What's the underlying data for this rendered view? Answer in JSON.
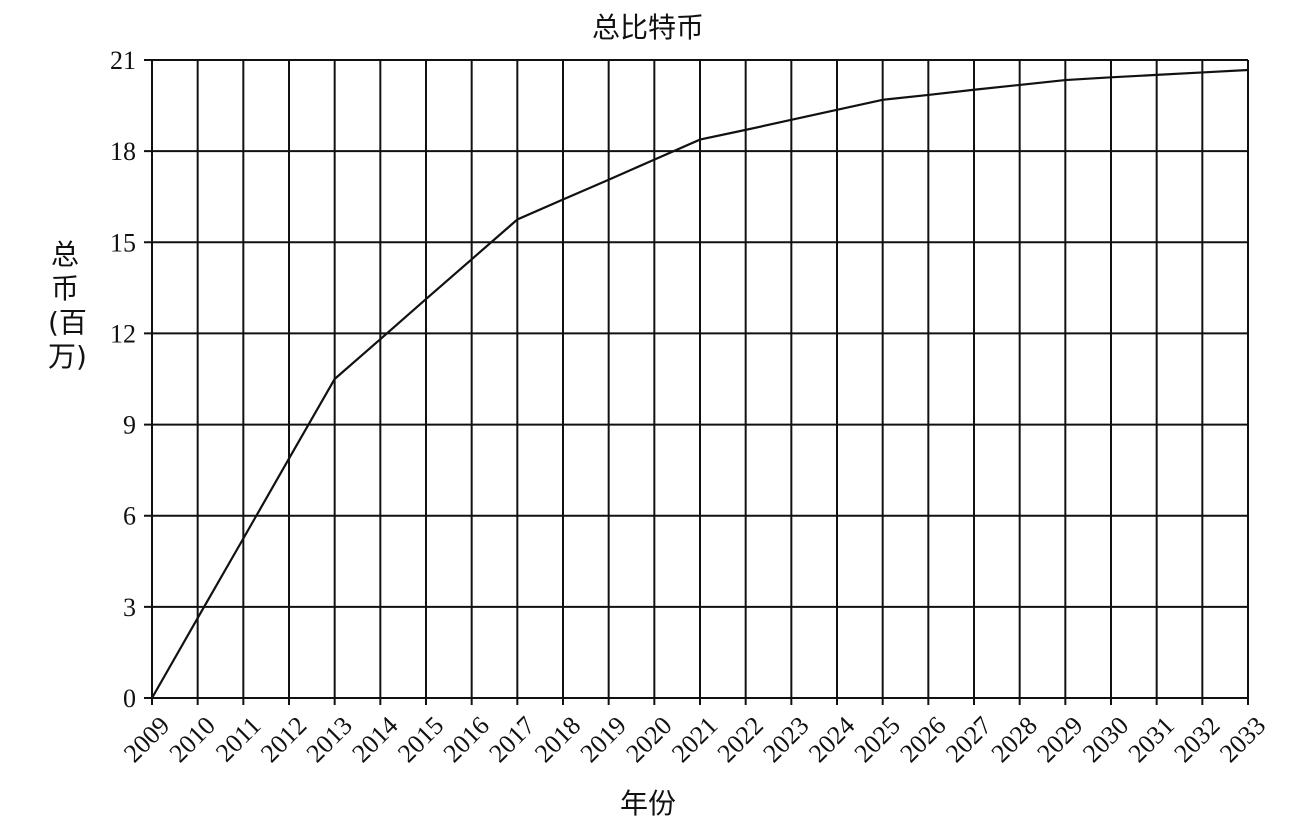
{
  "chart_data": {
    "type": "line",
    "title": "总比特币",
    "xlabel": "年份",
    "ylabel": "总币(百万)",
    "x": [
      "2009",
      "2010",
      "2011",
      "2012",
      "2013",
      "2014",
      "2015",
      "2016",
      "2017",
      "2018",
      "2019",
      "2020",
      "2021",
      "2022",
      "2023",
      "2024",
      "2025",
      "2026",
      "2027",
      "2028",
      "2029",
      "2030",
      "2031",
      "2032",
      "2033"
    ],
    "yticks": [
      "0",
      "3",
      "6",
      "9",
      "12",
      "15",
      "18",
      "21"
    ],
    "ylim": [
      0,
      21
    ],
    "grid": true,
    "series": [
      {
        "values": [
          0,
          2.63,
          5.25,
          7.88,
          10.5,
          11.81,
          13.13,
          14.44,
          15.75,
          16.41,
          17.06,
          17.72,
          18.38,
          18.7,
          19.03,
          19.36,
          19.69,
          19.85,
          20.02,
          20.18,
          20.34,
          20.43,
          20.51,
          20.59,
          20.67
        ]
      }
    ]
  }
}
